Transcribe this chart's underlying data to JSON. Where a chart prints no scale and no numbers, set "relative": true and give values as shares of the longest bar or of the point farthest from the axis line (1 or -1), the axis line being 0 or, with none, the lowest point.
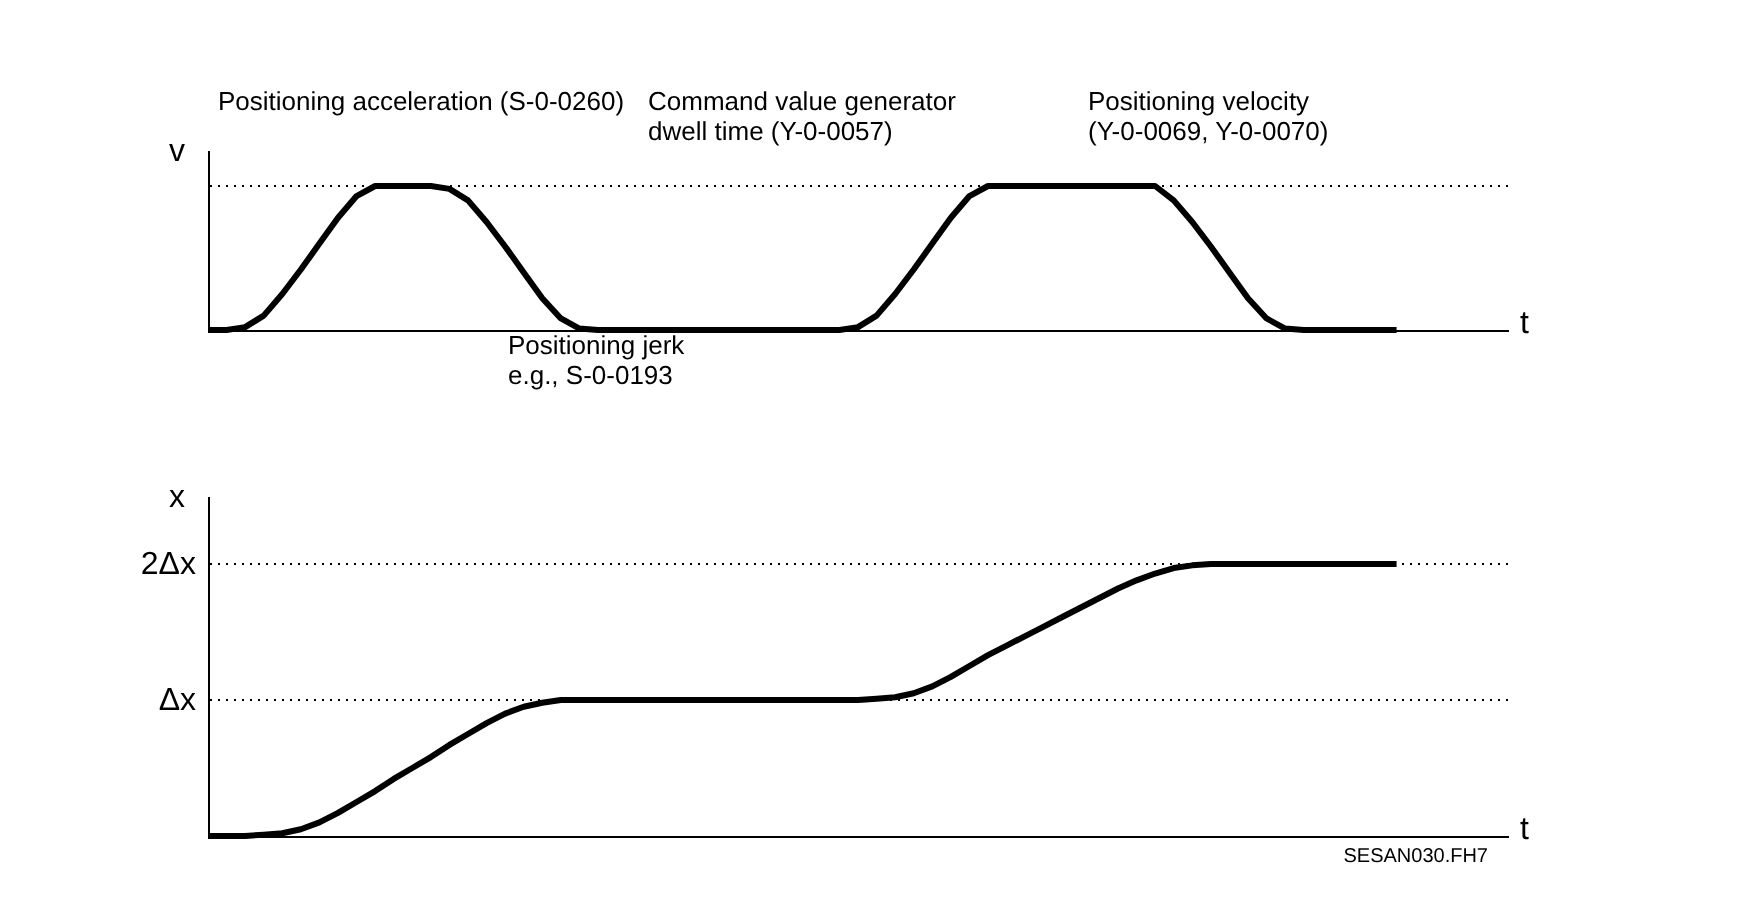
{
  "chart_data": [
    {
      "type": "line",
      "relative": true,
      "ylabel": "v",
      "xlabel": "t",
      "categories": [
        null,
        null,
        null,
        null,
        null,
        null,
        null,
        null,
        null,
        null,
        null,
        null,
        null,
        null,
        null,
        null,
        null,
        null,
        null,
        null,
        null,
        null,
        null,
        null,
        null,
        null,
        null,
        null,
        null,
        null,
        null,
        null,
        null,
        null,
        null,
        null,
        null,
        null,
        null,
        null,
        null,
        null,
        null,
        null,
        null,
        null,
        null,
        null,
        null,
        null,
        null,
        null,
        null,
        null,
        null,
        null,
        null,
        null,
        null,
        null,
        null,
        null,
        null,
        null,
        null
      ],
      "series": [
        {
          "color": "#000000",
          "values": [
            0,
            0,
            0.02,
            0.1,
            0.25,
            0.42,
            0.6,
            0.78,
            0.93,
            1,
            1,
            1,
            1,
            0.98,
            0.9,
            0.75,
            0.58,
            0.4,
            0.22,
            0.08,
            0.01,
            0,
            0,
            0,
            0,
            0,
            0,
            0,
            0,
            0,
            0,
            0,
            0,
            0,
            0,
            0.02,
            0.1,
            0.25,
            0.42,
            0.6,
            0.78,
            0.93,
            1,
            1,
            1,
            1,
            1,
            1,
            1,
            1,
            1,
            1,
            0.9,
            0.75,
            0.58,
            0.4,
            0.22,
            0.08,
            0.01,
            0,
            0,
            0,
            0,
            0,
            0
          ]
        }
      ],
      "ref_lines": [
        {
          "axis": "y",
          "value": 1,
          "line_style": "dotted"
        }
      ],
      "line_style": "solid",
      "marker": "none",
      "annotations": [
        "Positioning acceleration (S-0-0260)",
        "Command value generator\ndwell time (Y-0-0057)",
        "Positioning velocity\n(Y-0-0069, Y-0-0070)",
        "Positioning jerk\ne.g., S-0-0193"
      ]
    },
    {
      "type": "line",
      "relative": true,
      "ylabel": "x",
      "xlabel": "t",
      "categories": [
        null,
        null,
        null,
        null,
        null,
        null,
        null,
        null,
        null,
        null,
        null,
        null,
        null,
        null,
        null,
        null,
        null,
        null,
        null,
        null,
        null,
        null,
        null,
        null,
        null,
        null,
        null,
        null,
        null,
        null,
        null,
        null,
        null,
        null,
        null,
        null,
        null,
        null,
        null,
        null,
        null,
        null,
        null,
        null,
        null,
        null,
        null,
        null,
        null,
        null,
        null,
        null,
        null,
        null,
        null,
        null,
        null,
        null,
        null,
        null,
        null,
        null,
        null,
        null,
        null
      ],
      "series": [
        {
          "color": "#000000",
          "values": [
            0,
            0,
            0,
            0.005,
            0.01,
            0.025,
            0.05,
            0.085,
            0.125,
            0.165,
            0.21,
            0.25,
            0.29,
            0.335,
            0.375,
            0.415,
            0.45,
            0.475,
            0.49,
            0.5,
            0.5,
            0.5,
            0.5,
            0.5,
            0.5,
            0.5,
            0.5,
            0.5,
            0.5,
            0.5,
            0.5,
            0.5,
            0.5,
            0.5,
            0.5,
            0.5,
            0.505,
            0.51,
            0.525,
            0.55,
            0.585,
            0.625,
            0.665,
            0.7,
            0.735,
            0.77,
            0.805,
            0.84,
            0.875,
            0.91,
            0.94,
            0.965,
            0.985,
            0.995,
            1,
            1,
            1,
            1,
            1,
            1,
            1,
            1,
            1,
            1,
            1
          ]
        }
      ],
      "ref_lines": [
        {
          "axis": "y",
          "value": 0.5,
          "label": "Δx",
          "line_style": "dotted"
        },
        {
          "axis": "y",
          "value": 1,
          "label": "2Δx",
          "line_style": "dotted"
        }
      ],
      "line_style": "solid",
      "marker": "none",
      "annotations": [
        "SESAN030.FH7"
      ]
    }
  ]
}
